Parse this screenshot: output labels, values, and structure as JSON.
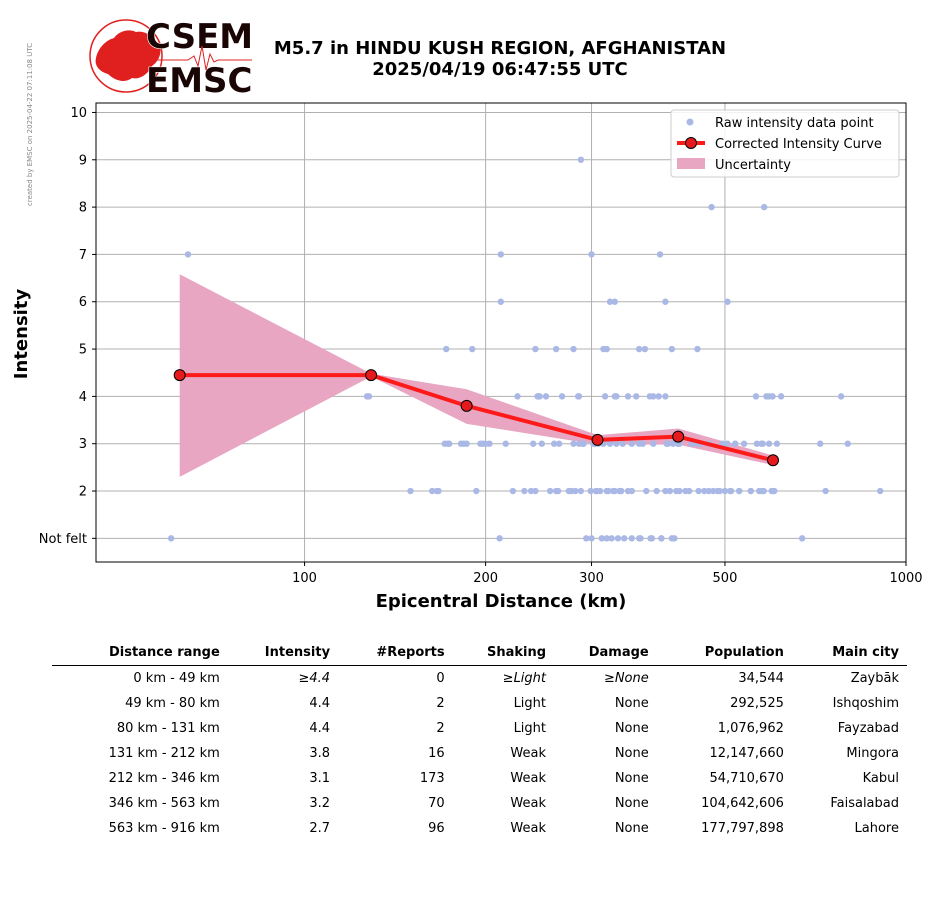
{
  "header": {
    "credit": "created by EMSC on 2025-04-22 07:11:08 UTC",
    "logo_top": "CSEM",
    "logo_bottom": "EMSC",
    "title_line1": "M5.7 in HINDU KUSH REGION, AFGHANISTAN",
    "title_line2": "2025/04/19 06:47:55 UTC"
  },
  "colors": {
    "raw_points": "#aab8e6",
    "curve": "#ff1a1a",
    "marker_fill": "#e41a1c",
    "uncertainty": "#e8a6c2",
    "grid": "#b0b0b0",
    "logo": "#e0201f"
  },
  "chart_data": {
    "type": "scatter",
    "xlabel": "Epicentral Distance (km)",
    "ylabel": "Intensity",
    "xscale": "log",
    "xlim": [
      45,
      1000
    ],
    "ylim": [
      0.5,
      10.2
    ],
    "xticks": [
      100,
      200,
      300,
      500,
      1000
    ],
    "xtick_labels": [
      "100",
      "200",
      "300",
      "500",
      "1000"
    ],
    "yticks": [
      1,
      2,
      3,
      4,
      5,
      6,
      7,
      8,
      9,
      10
    ],
    "ytick_labels": [
      "Not felt",
      "2",
      "3",
      "4",
      "5",
      "6",
      "7",
      "8",
      "9",
      "10"
    ],
    "grid": true,
    "legend_position": "top-right",
    "legend": [
      {
        "key": "raw",
        "label": "Raw intensity data point"
      },
      {
        "key": "curve",
        "label": "Corrected Intensity Curve"
      },
      {
        "key": "band",
        "label": "Uncertainty"
      }
    ],
    "corrected_curve": {
      "x": [
        62,
        129,
        186,
        307,
        418,
        601
      ],
      "y": [
        4.45,
        4.45,
        3.8,
        3.08,
        3.15,
        2.65
      ]
    },
    "uncertainty": {
      "x": [
        62,
        129,
        186,
        307,
        418,
        601
      ],
      "upper": [
        6.58,
        4.48,
        4.15,
        3.18,
        3.32,
        2.75
      ],
      "lower": [
        2.3,
        4.42,
        3.42,
        2.98,
        2.98,
        2.55
      ]
    },
    "raw_points": {
      "x": [
        60,
        64,
        127,
        128,
        150,
        163,
        166,
        167,
        171,
        173,
        174,
        182,
        184,
        186,
        193,
        196,
        198,
        200,
        203,
        211,
        216,
        222,
        226,
        232,
        238,
        240,
        242,
        244,
        245,
        246,
        248,
        252,
        256,
        260,
        262,
        264,
        265,
        268,
        275,
        278,
        280,
        282,
        285,
        286,
        288,
        291,
        294,
        299,
        300,
        304,
        306,
        308,
        310,
        312,
        314,
        316,
        318,
        320,
        322,
        324,
        326,
        328,
        330,
        332,
        334,
        336,
        338,
        340,
        345,
        350,
        356,
        360,
        365,
        370,
        375,
        378,
        380,
        385,
        388,
        392,
        398,
        400,
        405,
        410,
        412,
        415,
        418,
        420,
        430,
        440,
        450,
        462,
        470,
        478,
        486,
        495,
        500,
        505,
        512,
        520,
        528,
        538,
        552,
        563,
        570,
        575,
        580,
        586,
        592,
        598,
        604,
        620,
        672,
        720,
        735,
        780,
        800,
        906,
        286,
        290,
        302,
        330,
        345,
        350,
        360,
        380,
        398,
        402,
        418,
        440,
        455,
        470,
        495,
        520,
        565,
        578,
        600,
        610,
        305,
        318,
        328,
        336,
        350,
        362,
        376,
        392,
        408,
        420,
        436,
        452,
        470,
        490,
        510,
        528,
        552,
        575,
        602,
        212,
        172,
        190,
        242,
        262,
        280,
        314,
        318,
        322,
        328,
        360,
        368,
        398,
        408,
        450,
        505,
        592,
        212,
        300,
        390,
        475,
        581,
        288
      ],
      "y": [
        1,
        7,
        4,
        4,
        2,
        2,
        2,
        2,
        3,
        3,
        3,
        3,
        3,
        3,
        2,
        3,
        3,
        3,
        3,
        1,
        3,
        2,
        4,
        2,
        2,
        3,
        2,
        4,
        4,
        4,
        3,
        4,
        2,
        3,
        2,
        2,
        3,
        4,
        2,
        2,
        3,
        2,
        4,
        4,
        2,
        3,
        1,
        2,
        1,
        3,
        2,
        3,
        2,
        1,
        3,
        4,
        1,
        2,
        3,
        1,
        2,
        4,
        3,
        1,
        2,
        2,
        3,
        1,
        2,
        2,
        4,
        1,
        3,
        2,
        4,
        1,
        3,
        2,
        4,
        1,
        2,
        3,
        2,
        3,
        1,
        2,
        3,
        3,
        2,
        3,
        3,
        2,
        3,
        2,
        2,
        3,
        2,
        3,
        2,
        3,
        2,
        3,
        2,
        4,
        2,
        3,
        2,
        4,
        3,
        2,
        2,
        4,
        1,
        3,
        2,
        4,
        3,
        2,
        3,
        3,
        3,
        4,
        4,
        3,
        3,
        4,
        4,
        3,
        3,
        3,
        3,
        3,
        3,
        3,
        3,
        3,
        4,
        3,
        2,
        2,
        2,
        2,
        1,
        1,
        1,
        1,
        1,
        2,
        2,
        2,
        2,
        2,
        2,
        2,
        2,
        2,
        2,
        6,
        5,
        5,
        5,
        5,
        5,
        5,
        5,
        6,
        6,
        5,
        5,
        6,
        5,
        5,
        6,
        4,
        7,
        7,
        7,
        8,
        8,
        9
      ]
    }
  },
  "table": {
    "headers": [
      "Distance range",
      "Intensity",
      "#Reports",
      "Shaking",
      "Damage",
      "Population",
      "Main city"
    ],
    "rows": [
      [
        "0 km -   49 km",
        "≥4.4",
        "0",
        "≥Light",
        "≥None",
        "34,544",
        "Zaybāk"
      ],
      [
        "49 km -   80 km",
        "4.4",
        "2",
        "Light",
        "None",
        "292,525",
        "Ishqoshim"
      ],
      [
        "80 km -  131 km",
        "4.4",
        "2",
        "Light",
        "None",
        "1,076,962",
        "Fayzabad"
      ],
      [
        "131 km -  212 km",
        "3.8",
        "16",
        "Weak",
        "None",
        "12,147,660",
        "Mingora"
      ],
      [
        "212 km -  346 km",
        "3.1",
        "173",
        "Weak",
        "None",
        "54,710,670",
        "Kabul"
      ],
      [
        "346 km -  563 km",
        "3.2",
        "70",
        "Weak",
        "None",
        "104,642,606",
        "Faisalabad"
      ],
      [
        "563 km -  916 km",
        "2.7",
        "96",
        "Weak",
        "None",
        "177,797,898",
        "Lahore"
      ]
    ]
  }
}
